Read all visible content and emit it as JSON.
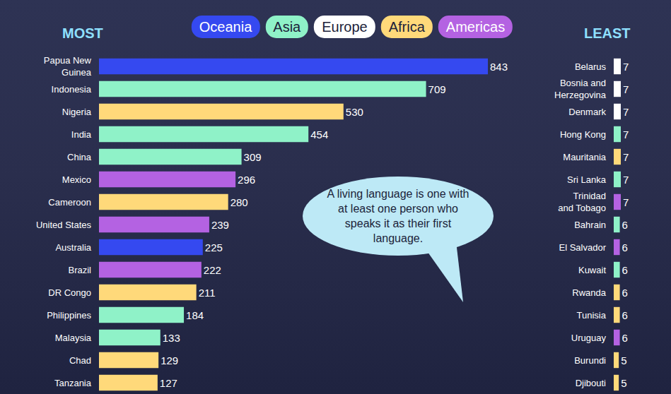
{
  "chart_data": [
    {
      "type": "bar",
      "title": "MOST",
      "orientation": "horizontal",
      "data_labels": true,
      "tick_labels": "y",
      "grid": false,
      "legend": "top",
      "categories": [
        "Papua New Guinea",
        "Indonesia",
        "Nigeria",
        "India",
        "China",
        "Mexico",
        "Cameroon",
        "United States",
        "Australia",
        "Brazil",
        "DR Congo",
        "Philippines",
        "Malaysia",
        "Chad",
        "Tanzania"
      ],
      "series": [
        {
          "name": "Oceania",
          "color": "#3549f0",
          "values": [
            843,
            null,
            null,
            null,
            null,
            null,
            null,
            null,
            225,
            null,
            null,
            null,
            null,
            null,
            null
          ]
        },
        {
          "name": "Asia",
          "color": "#8ff2c8",
          "values": [
            null,
            709,
            null,
            454,
            309,
            null,
            null,
            null,
            null,
            null,
            null,
            184,
            133,
            null,
            null
          ]
        },
        {
          "name": "Europe",
          "color": "#ffffff",
          "values": [
            null,
            null,
            null,
            null,
            null,
            null,
            null,
            null,
            null,
            null,
            null,
            null,
            null,
            null,
            null
          ]
        },
        {
          "name": "Africa",
          "color": "#ffd97a",
          "values": [
            null,
            null,
            530,
            null,
            null,
            null,
            280,
            null,
            null,
            null,
            211,
            null,
            null,
            129,
            127
          ]
        },
        {
          "name": "Americas",
          "color": "#b462e2",
          "values": [
            null,
            null,
            null,
            null,
            null,
            296,
            null,
            239,
            null,
            222,
            null,
            null,
            null,
            null,
            null
          ]
        }
      ],
      "xlim": [
        0,
        843
      ],
      "annotations": [
        {
          "text": "A living language is one with at least one person who speaks it as their first language."
        }
      ]
    },
    {
      "type": "bar",
      "title": "LEAST",
      "orientation": "horizontal",
      "data_labels": true,
      "tick_labels": "y",
      "grid": false,
      "categories": [
        "Belarus",
        "Bosnia and Herzegovina",
        "Denmark",
        "Hong Kong",
        "Mauritania",
        "Sri Lanka",
        "Trinidad and Tobago",
        "Bahrain",
        "El Salvador",
        "Kuwait",
        "Rwanda",
        "Tunisia",
        "Uruguay",
        "Burundi",
        "Djibouti"
      ],
      "series": [
        {
          "name": "Oceania",
          "color": "#3549f0",
          "values": [
            null,
            null,
            null,
            null,
            null,
            null,
            null,
            null,
            null,
            null,
            null,
            null,
            null,
            null,
            null
          ]
        },
        {
          "name": "Asia",
          "color": "#8ff2c8",
          "values": [
            null,
            null,
            null,
            7,
            null,
            7,
            null,
            6,
            null,
            6,
            null,
            null,
            null,
            null,
            null
          ]
        },
        {
          "name": "Europe",
          "color": "#ffffff",
          "values": [
            7,
            7,
            7,
            null,
            null,
            null,
            null,
            null,
            null,
            null,
            null,
            null,
            null,
            null,
            null
          ]
        },
        {
          "name": "Africa",
          "color": "#ffd97a",
          "values": [
            null,
            null,
            null,
            null,
            7,
            null,
            null,
            null,
            null,
            null,
            6,
            6,
            null,
            5,
            5
          ]
        },
        {
          "name": "Americas",
          "color": "#b462e2",
          "values": [
            null,
            null,
            null,
            null,
            null,
            null,
            7,
            null,
            6,
            null,
            null,
            null,
            6,
            null,
            null
          ]
        }
      ],
      "xlim": [
        0,
        7
      ]
    }
  ]
}
